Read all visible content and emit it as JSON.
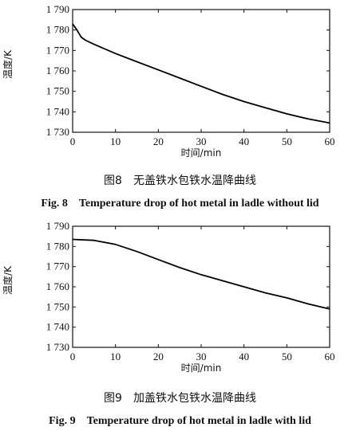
{
  "chart_data": [
    {
      "type": "line",
      "xlabel": "时间/min",
      "ylabel": "温度/K",
      "xlim": [
        0,
        60
      ],
      "ylim": [
        1730,
        1790
      ],
      "x_ticks": [
        "0",
        "10",
        "20",
        "30",
        "40",
        "50",
        "60"
      ],
      "y_ticks": [
        "1 730",
        "1 740",
        "1 750",
        "1 760",
        "1 770",
        "1 780",
        "1 790"
      ],
      "x": [
        0,
        1,
        2,
        3,
        5,
        10,
        15,
        20,
        25,
        30,
        35,
        40,
        45,
        50,
        55,
        60
      ],
      "series": [
        {
          "values": [
            1783,
            1780,
            1776.5,
            1775,
            1773,
            1768.5,
            1764.5,
            1760.5,
            1756.5,
            1752.5,
            1748.5,
            1745,
            1742,
            1739,
            1736.5,
            1734.5
          ]
        }
      ],
      "grid": false,
      "caption_cn": "图8　无盖铁水包铁水温降曲线",
      "caption_en": "Fig. 8　Temperature drop of hot metal in ladle without lid"
    },
    {
      "type": "line",
      "xlabel": "时间/min",
      "ylabel": "温度/K",
      "xlim": [
        0,
        60
      ],
      "ylim": [
        1730,
        1790
      ],
      "x_ticks": [
        "0",
        "10",
        "20",
        "30",
        "40",
        "50",
        "60"
      ],
      "y_ticks": [
        "1 730",
        "1 740",
        "1 750",
        "1 760",
        "1 770",
        "1 780",
        "1 790"
      ],
      "x": [
        0,
        5,
        10,
        15,
        20,
        25,
        30,
        35,
        40,
        45,
        50,
        55,
        60
      ],
      "series": [
        {
          "values": [
            1783.5,
            1783,
            1781,
            1777.5,
            1773.5,
            1769.5,
            1766,
            1763,
            1760,
            1757,
            1754.5,
            1751.5,
            1749
          ]
        }
      ],
      "grid": false,
      "caption_cn": "图9　加盖铁水包铁水温降曲线",
      "caption_en": "Fig. 9　Temperature drop of hot metal in ladle with lid"
    }
  ]
}
